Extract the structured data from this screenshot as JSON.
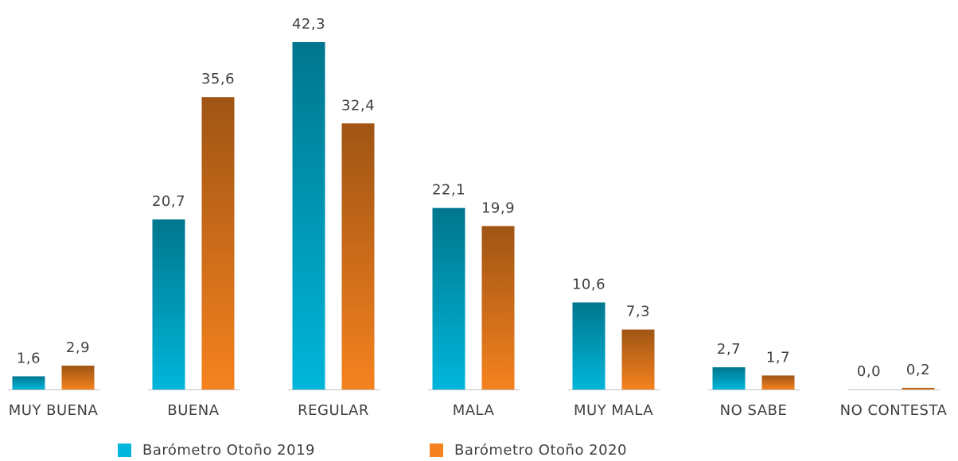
{
  "chart_data": {
    "type": "bar",
    "categories": [
      "MUY BUENA",
      "BUENA",
      "REGULAR",
      "MALA",
      "MUY MALA",
      "NO SABE",
      "NO CONTESTA"
    ],
    "series": [
      {
        "name": "Barómetro Otoño 2019",
        "color": "#00b6da",
        "values": [
          1.6,
          20.7,
          42.3,
          22.1,
          10.6,
          2.7,
          0.0
        ],
        "value_labels": [
          "1,6",
          "20,7",
          "42,3",
          "22,1",
          "10,6",
          "2,7",
          "0,0"
        ]
      },
      {
        "name": "Barómetro Otoño 2020",
        "color": "#f5821f",
        "values": [
          2.9,
          35.6,
          32.4,
          19.9,
          7.3,
          1.7,
          0.2
        ],
        "value_labels": [
          "2,9",
          "35,6",
          "32,4",
          "19,9",
          "7,3",
          "1,7",
          "0,2"
        ]
      }
    ],
    "legend": "bottom"
  }
}
